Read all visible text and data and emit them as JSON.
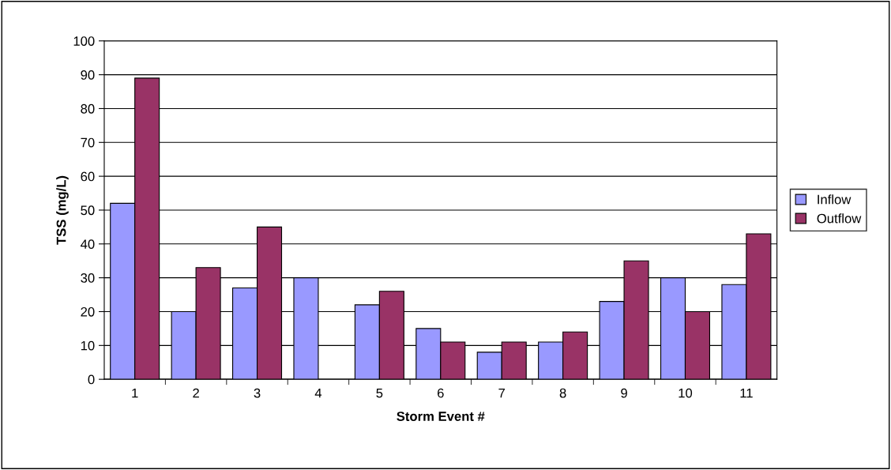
{
  "chart_data": {
    "type": "bar",
    "xlabel": "Storm Event #",
    "ylabel": "TSS (mg/L)",
    "categories": [
      "1",
      "2",
      "3",
      "4",
      "5",
      "6",
      "7",
      "8",
      "9",
      "10",
      "11"
    ],
    "series": [
      {
        "name": "Inflow",
        "color": "#9999ff",
        "values": [
          52,
          20,
          27,
          30,
          22,
          15,
          8,
          11,
          23,
          30,
          28
        ]
      },
      {
        "name": "Outflow",
        "color": "#993366",
        "values": [
          89,
          33,
          45,
          null,
          26,
          11,
          11,
          14,
          35,
          20,
          43
        ]
      }
    ],
    "ylim": [
      0,
      100
    ],
    "yticks": [
      0,
      10,
      20,
      30,
      40,
      50,
      60,
      70,
      80,
      90,
      100
    ],
    "grid": "y",
    "legend": "right"
  }
}
